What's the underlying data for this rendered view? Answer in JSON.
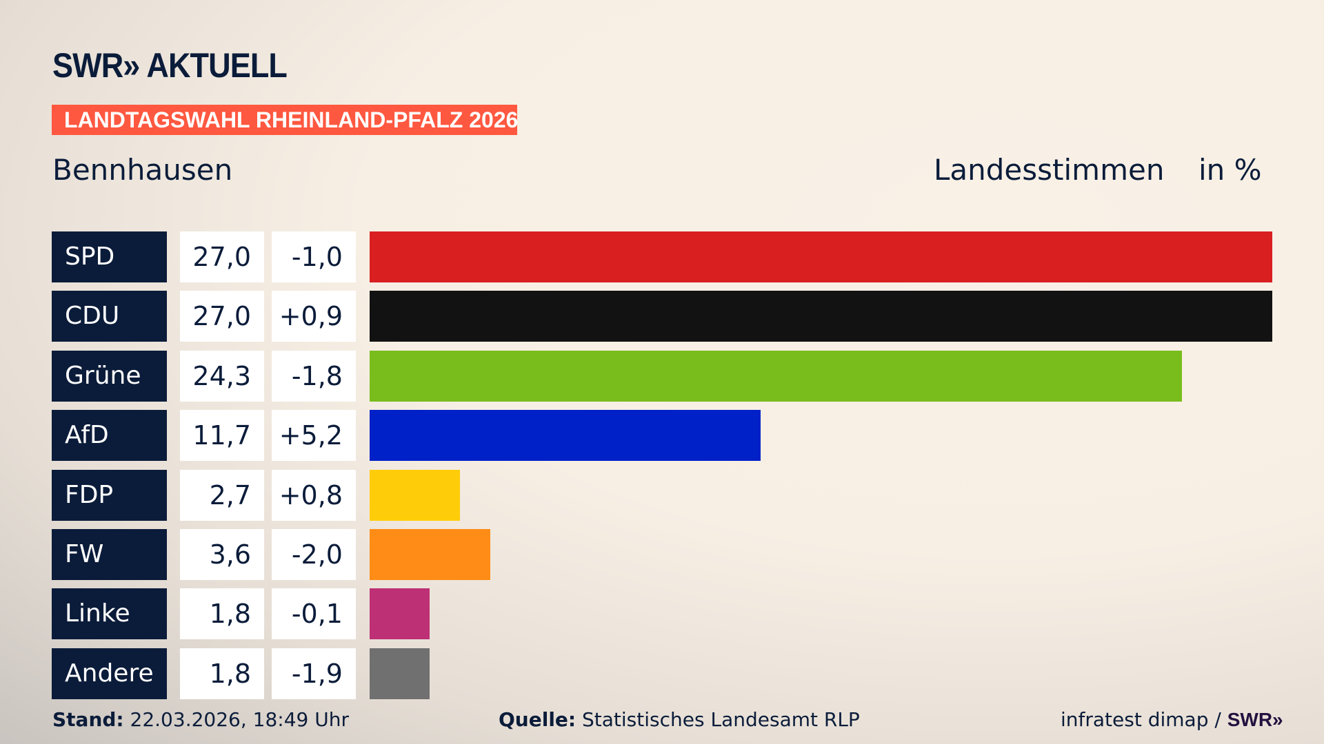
{
  "header": {
    "logo_text": "SWR» AKTUELL",
    "banner": "LANDTAGSWAHL RHEINLAND-PFALZ 2026",
    "banner_color": "#ff5840",
    "place": "Bennhausen",
    "measure": "Landesstimmen",
    "unit": "in %"
  },
  "chart_data": {
    "type": "bar",
    "orientation": "horizontal",
    "categories": [
      "SPD",
      "CDU",
      "Grüne",
      "AfD",
      "FDP",
      "FW",
      "Linke",
      "Andere"
    ],
    "values": [
      27.0,
      27.0,
      24.3,
      11.7,
      2.7,
      3.6,
      1.8,
      1.8
    ],
    "value_labels": [
      "27,0",
      "27,0",
      "24,3",
      "11,7",
      "2,7",
      "3,6",
      "1,8",
      "1,8"
    ],
    "change_labels": [
      "-1,0",
      "+0,9",
      "-1,8",
      "+5,2",
      "+0,8",
      "-2,0",
      "-0,1",
      "-1,9"
    ],
    "changes": [
      -1.0,
      0.9,
      -1.8,
      5.2,
      0.8,
      -2.0,
      -0.1,
      -1.9
    ],
    "colors": [
      "#d91f20",
      "#121212",
      "#79bd1d",
      "#0020c8",
      "#ffcc0a",
      "#ff8c17",
      "#bd3075",
      "#707070"
    ],
    "xlim": [
      0,
      27.0
    ],
    "grid": false
  },
  "footer": {
    "stand_label": "Stand:",
    "stand_value": "22.03.2026, 18:49 Uhr",
    "source_label": "Quelle:",
    "source_value": "Statistisches Landesamt RLP",
    "credit": "infratest dimap /",
    "credit_logo": "SWR»"
  }
}
